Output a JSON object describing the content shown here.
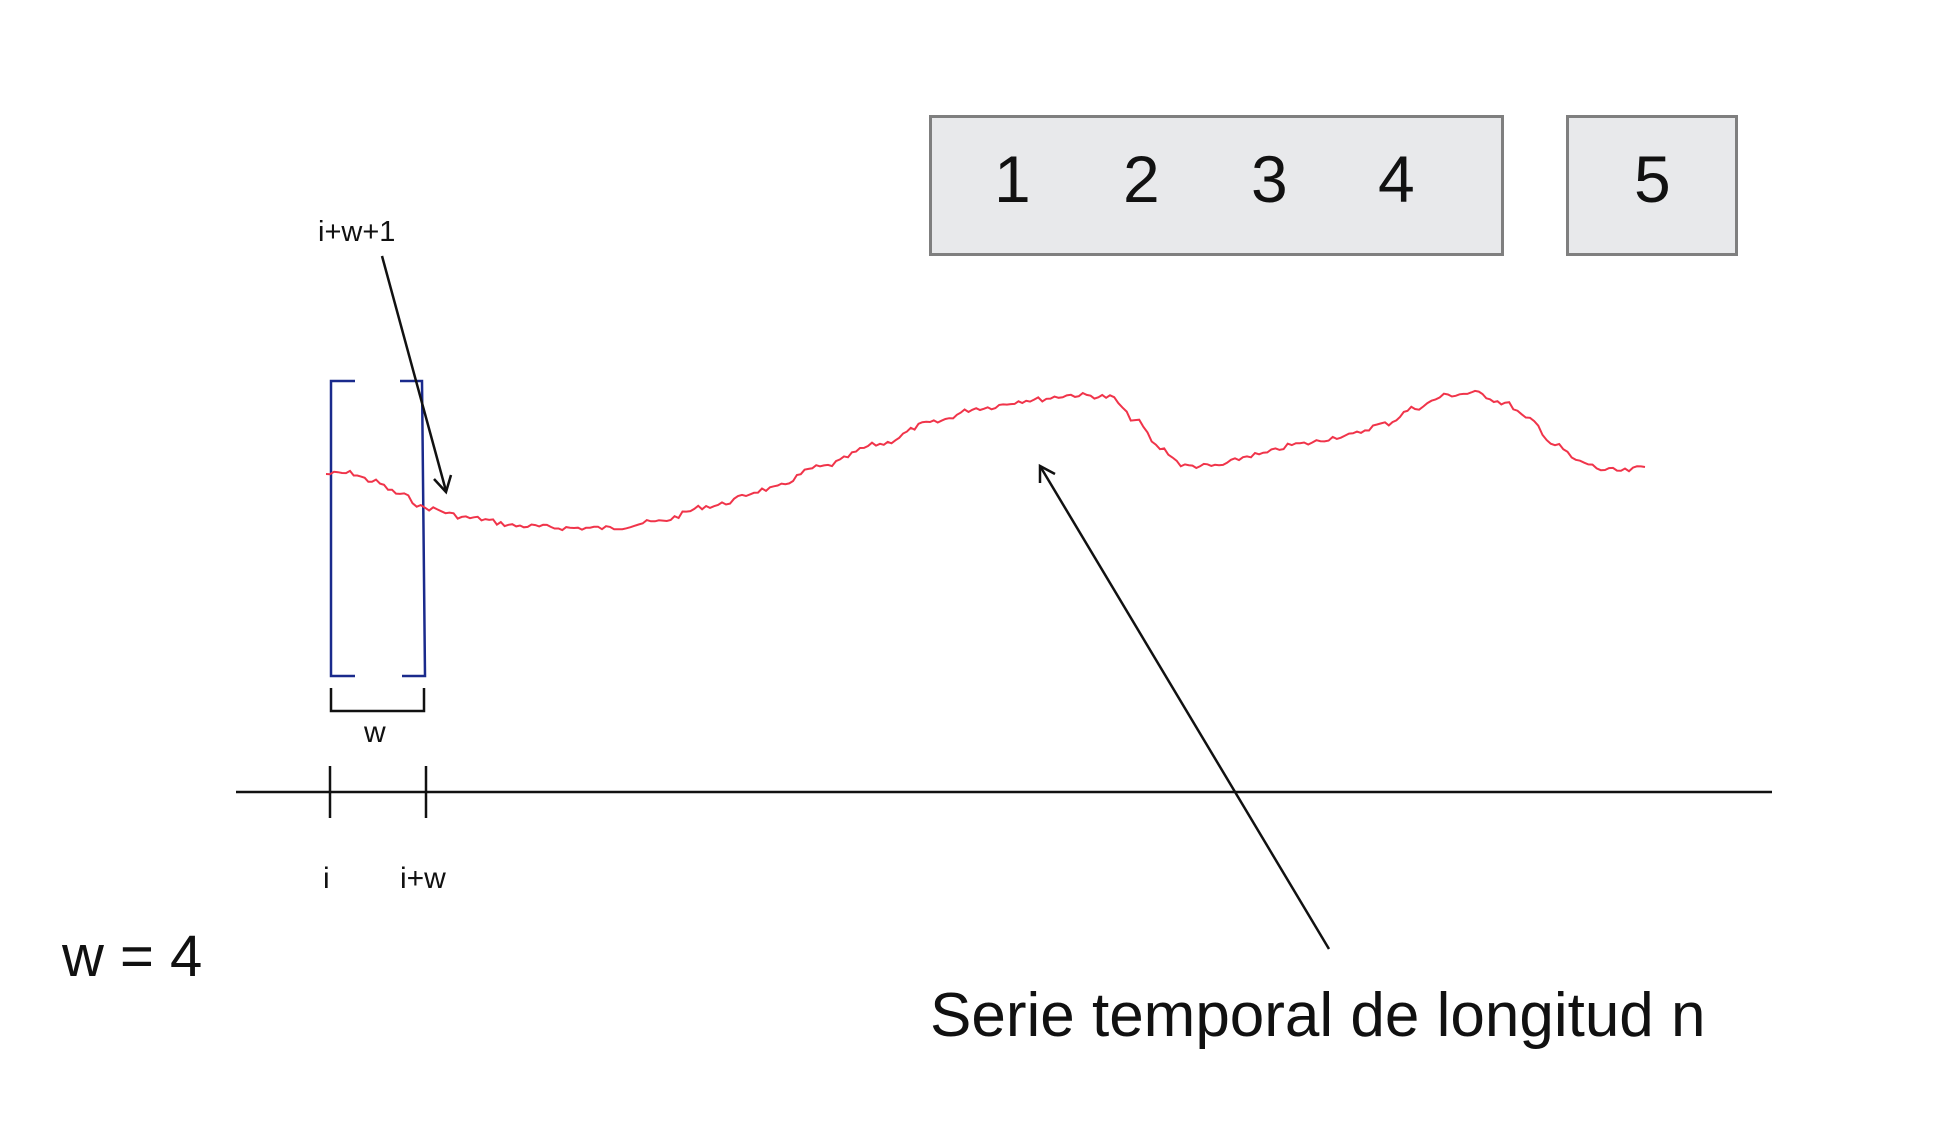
{
  "window_box": {
    "items": [
      "1",
      "2",
      "3",
      "4"
    ]
  },
  "target_box": {
    "item": "5"
  },
  "labels": {
    "next_index": "i+w+1",
    "window_width": "w",
    "start_index": "i",
    "end_index": "i+w",
    "w_value": "w = 4",
    "series_caption": "Serie temporal de longitud n"
  },
  "colors": {
    "series": "#f0344a",
    "window_bracket": "#1a2a8c",
    "box_fill": "#e8e9eb",
    "box_border": "#7f7f7f"
  }
}
